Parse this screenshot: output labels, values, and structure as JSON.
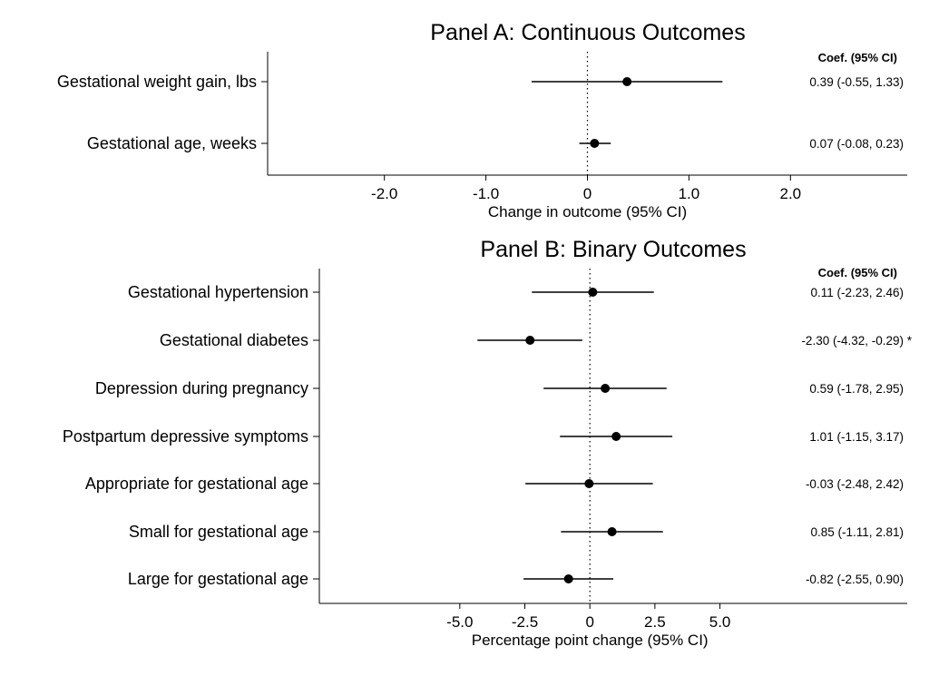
{
  "chart_data": [
    {
      "type": "forest",
      "title": "Panel A: Continuous Outcomes",
      "xlabel": "Change in outcome (95% CI)",
      "ci_header": "Coef. (95% CI)",
      "xlim": [
        -3.15,
        3.15
      ],
      "xticks": [
        -2.0,
        -1.0,
        0,
        1.0,
        2.0
      ],
      "xtick_labels": [
        "-2.0",
        "-1.0",
        "0",
        "1.0",
        "2.0"
      ],
      "reference_line": 0,
      "rows": [
        {
          "label": "Gestational weight gain, lbs",
          "coef": 0.39,
          "lo": -0.55,
          "hi": 1.33,
          "ci_text": "0.39  (-0.55,  1.33)"
        },
        {
          "label": "Gestational age, weeks",
          "coef": 0.07,
          "lo": -0.08,
          "hi": 0.23,
          "ci_text": "0.07  (-0.08,  0.23)"
        }
      ]
    },
    {
      "type": "forest",
      "title": "Panel B: Binary Outcomes",
      "xlabel": "Percentage point change (95% CI)",
      "ci_header": "Coef. (95% CI)",
      "xlim": [
        -10.4,
        12.2
      ],
      "xticks": [
        -5.0,
        -2.5,
        0,
        2.5,
        5.0
      ],
      "xtick_labels": [
        "-5.0",
        "-2.5",
        "0",
        "2.5",
        "5.0"
      ],
      "reference_line": 0,
      "rows": [
        {
          "label": "Gestational hypertension",
          "coef": 0.11,
          "lo": -2.23,
          "hi": 2.46,
          "ci_text": "0.11  (-2.23,  2.46)"
        },
        {
          "label": "Gestational diabetes",
          "coef": -2.3,
          "lo": -4.32,
          "hi": -0.29,
          "ci_text": "-2.30  (-4.32,  -0.29) *"
        },
        {
          "label": "Depression during pregnancy",
          "coef": 0.59,
          "lo": -1.78,
          "hi": 2.95,
          "ci_text": "0.59  (-1.78,  2.95)"
        },
        {
          "label": "Postpartum depressive symptoms",
          "coef": 1.01,
          "lo": -1.15,
          "hi": 3.17,
          "ci_text": "1.01  (-1.15,  3.17)"
        },
        {
          "label": "Appropriate for gestational age",
          "coef": -0.03,
          "lo": -2.48,
          "hi": 2.42,
          "ci_text": "-0.03  (-2.48,  2.42)"
        },
        {
          "label": "Small for gestational age",
          "coef": 0.85,
          "lo": -1.11,
          "hi": 2.81,
          "ci_text": "0.85  (-1.11,  2.81)"
        },
        {
          "label": "Large for gestational age",
          "coef": -0.82,
          "lo": -2.55,
          "hi": 0.9,
          "ci_text": "-0.82  (-2.55,  0.90)"
        }
      ]
    }
  ]
}
